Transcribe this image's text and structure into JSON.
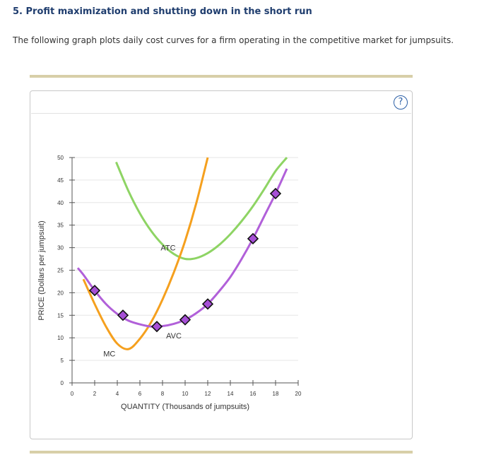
{
  "heading": "5. Profit maximization and shutting down in the short run",
  "intro": "The following graph plots daily cost curves for a firm operating in the competitive market for jumpsuits.",
  "help_label": "?",
  "chart_data": {
    "type": "line",
    "xlabel": "QUANTITY (Thousands of jumpsuits)",
    "ylabel": "PRICE (Dollars per jumpsuit)",
    "xlim": [
      0,
      20
    ],
    "ylim": [
      0,
      50
    ],
    "x_ticks": [
      0,
      2,
      4,
      6,
      8,
      10,
      12,
      14,
      16,
      18,
      20
    ],
    "y_ticks": [
      0,
      5,
      10,
      15,
      20,
      25,
      30,
      35,
      40,
      45,
      50
    ],
    "grid": true,
    "series": [
      {
        "name": "ATC",
        "color": "#8ed464",
        "x": [
          3.9,
          5,
          6,
          7,
          8,
          9,
          10,
          11,
          12,
          13,
          14,
          15,
          16,
          17,
          18,
          19
        ],
        "y": [
          49,
          42.5,
          37.6,
          33.7,
          30.7,
          28.6,
          27.5,
          27.7,
          28.8,
          30.6,
          33,
          35.9,
          39.2,
          43,
          47,
          50
        ]
      },
      {
        "name": "MC",
        "color": "#f5a01e",
        "x": [
          1,
          2,
          3,
          4,
          5,
          6,
          7,
          8,
          9,
          10,
          11,
          12
        ],
        "y": [
          23,
          17.5,
          12.5,
          8.7,
          7.5,
          9.8,
          13.5,
          18.5,
          24.5,
          31.5,
          40,
          50
        ]
      },
      {
        "name": "AVC",
        "color": "#b160d9",
        "x": [
          0.5,
          1,
          2,
          3,
          4,
          5,
          6,
          7,
          8,
          9,
          10,
          11,
          12,
          13,
          14,
          15,
          16,
          17,
          18,
          19
        ],
        "y": [
          25.5,
          24,
          20.5,
          17.5,
          15.3,
          13.8,
          13,
          12.5,
          12.6,
          13.1,
          14,
          15.5,
          17.5,
          20.3,
          23.5,
          27.5,
          32,
          37,
          42,
          47.5
        ]
      }
    ],
    "markers": {
      "series": "AVC",
      "x": [
        2,
        4.5,
        7.5,
        10,
        12,
        16,
        18
      ],
      "y": [
        20.5,
        15,
        12.5,
        14,
        17.5,
        32,
        42
      ]
    },
    "annotations": [
      {
        "text": "ATC",
        "x": 8.5,
        "y": 30
      },
      {
        "text": "AVC",
        "x": 9,
        "y": 10.5
      },
      {
        "text": "MC",
        "x": 3.3,
        "y": 6.5
      }
    ]
  }
}
